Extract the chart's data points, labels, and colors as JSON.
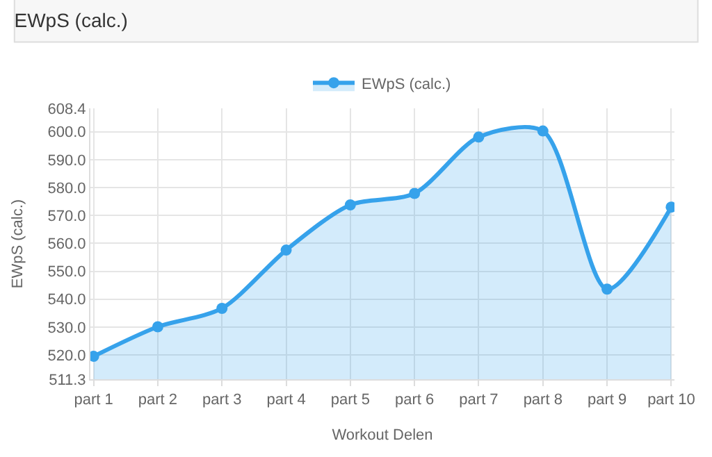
{
  "chart_data": {
    "type": "area",
    "title": "EWpS (calc.)",
    "xlabel": "Workout Delen",
    "ylabel": "EWpS (calc.)",
    "categories": [
      "part 1",
      "part 2",
      "part 3",
      "part 4",
      "part 5",
      "part 6",
      "part 7",
      "part 8",
      "part 9",
      "part 10"
    ],
    "series": [
      {
        "name": "EWpS (calc.)",
        "color": "#36a2eb",
        "values": [
          519.5,
          530.1,
          536.7,
          557.6,
          573.8,
          577.9,
          598.1,
          600.3,
          543.6,
          573.0
        ]
      }
    ],
    "ylim": [
      511.3,
      608.4
    ],
    "yticks": [
      {
        "value": 511.3,
        "label": "511.3"
      },
      {
        "value": 520,
        "label": "520.0"
      },
      {
        "value": 530,
        "label": "530.0"
      },
      {
        "value": 540,
        "label": "540.0"
      },
      {
        "value": 550,
        "label": "550.0"
      },
      {
        "value": 560,
        "label": "560.0"
      },
      {
        "value": 570,
        "label": "570.0"
      },
      {
        "value": 580,
        "label": "580.0"
      },
      {
        "value": 590,
        "label": "590.0"
      },
      {
        "value": 600,
        "label": "600.0"
      },
      {
        "value": 608.4,
        "label": "608.4"
      }
    ],
    "grid": true,
    "legend": "top",
    "marker": "circle",
    "line_style": "solid"
  }
}
